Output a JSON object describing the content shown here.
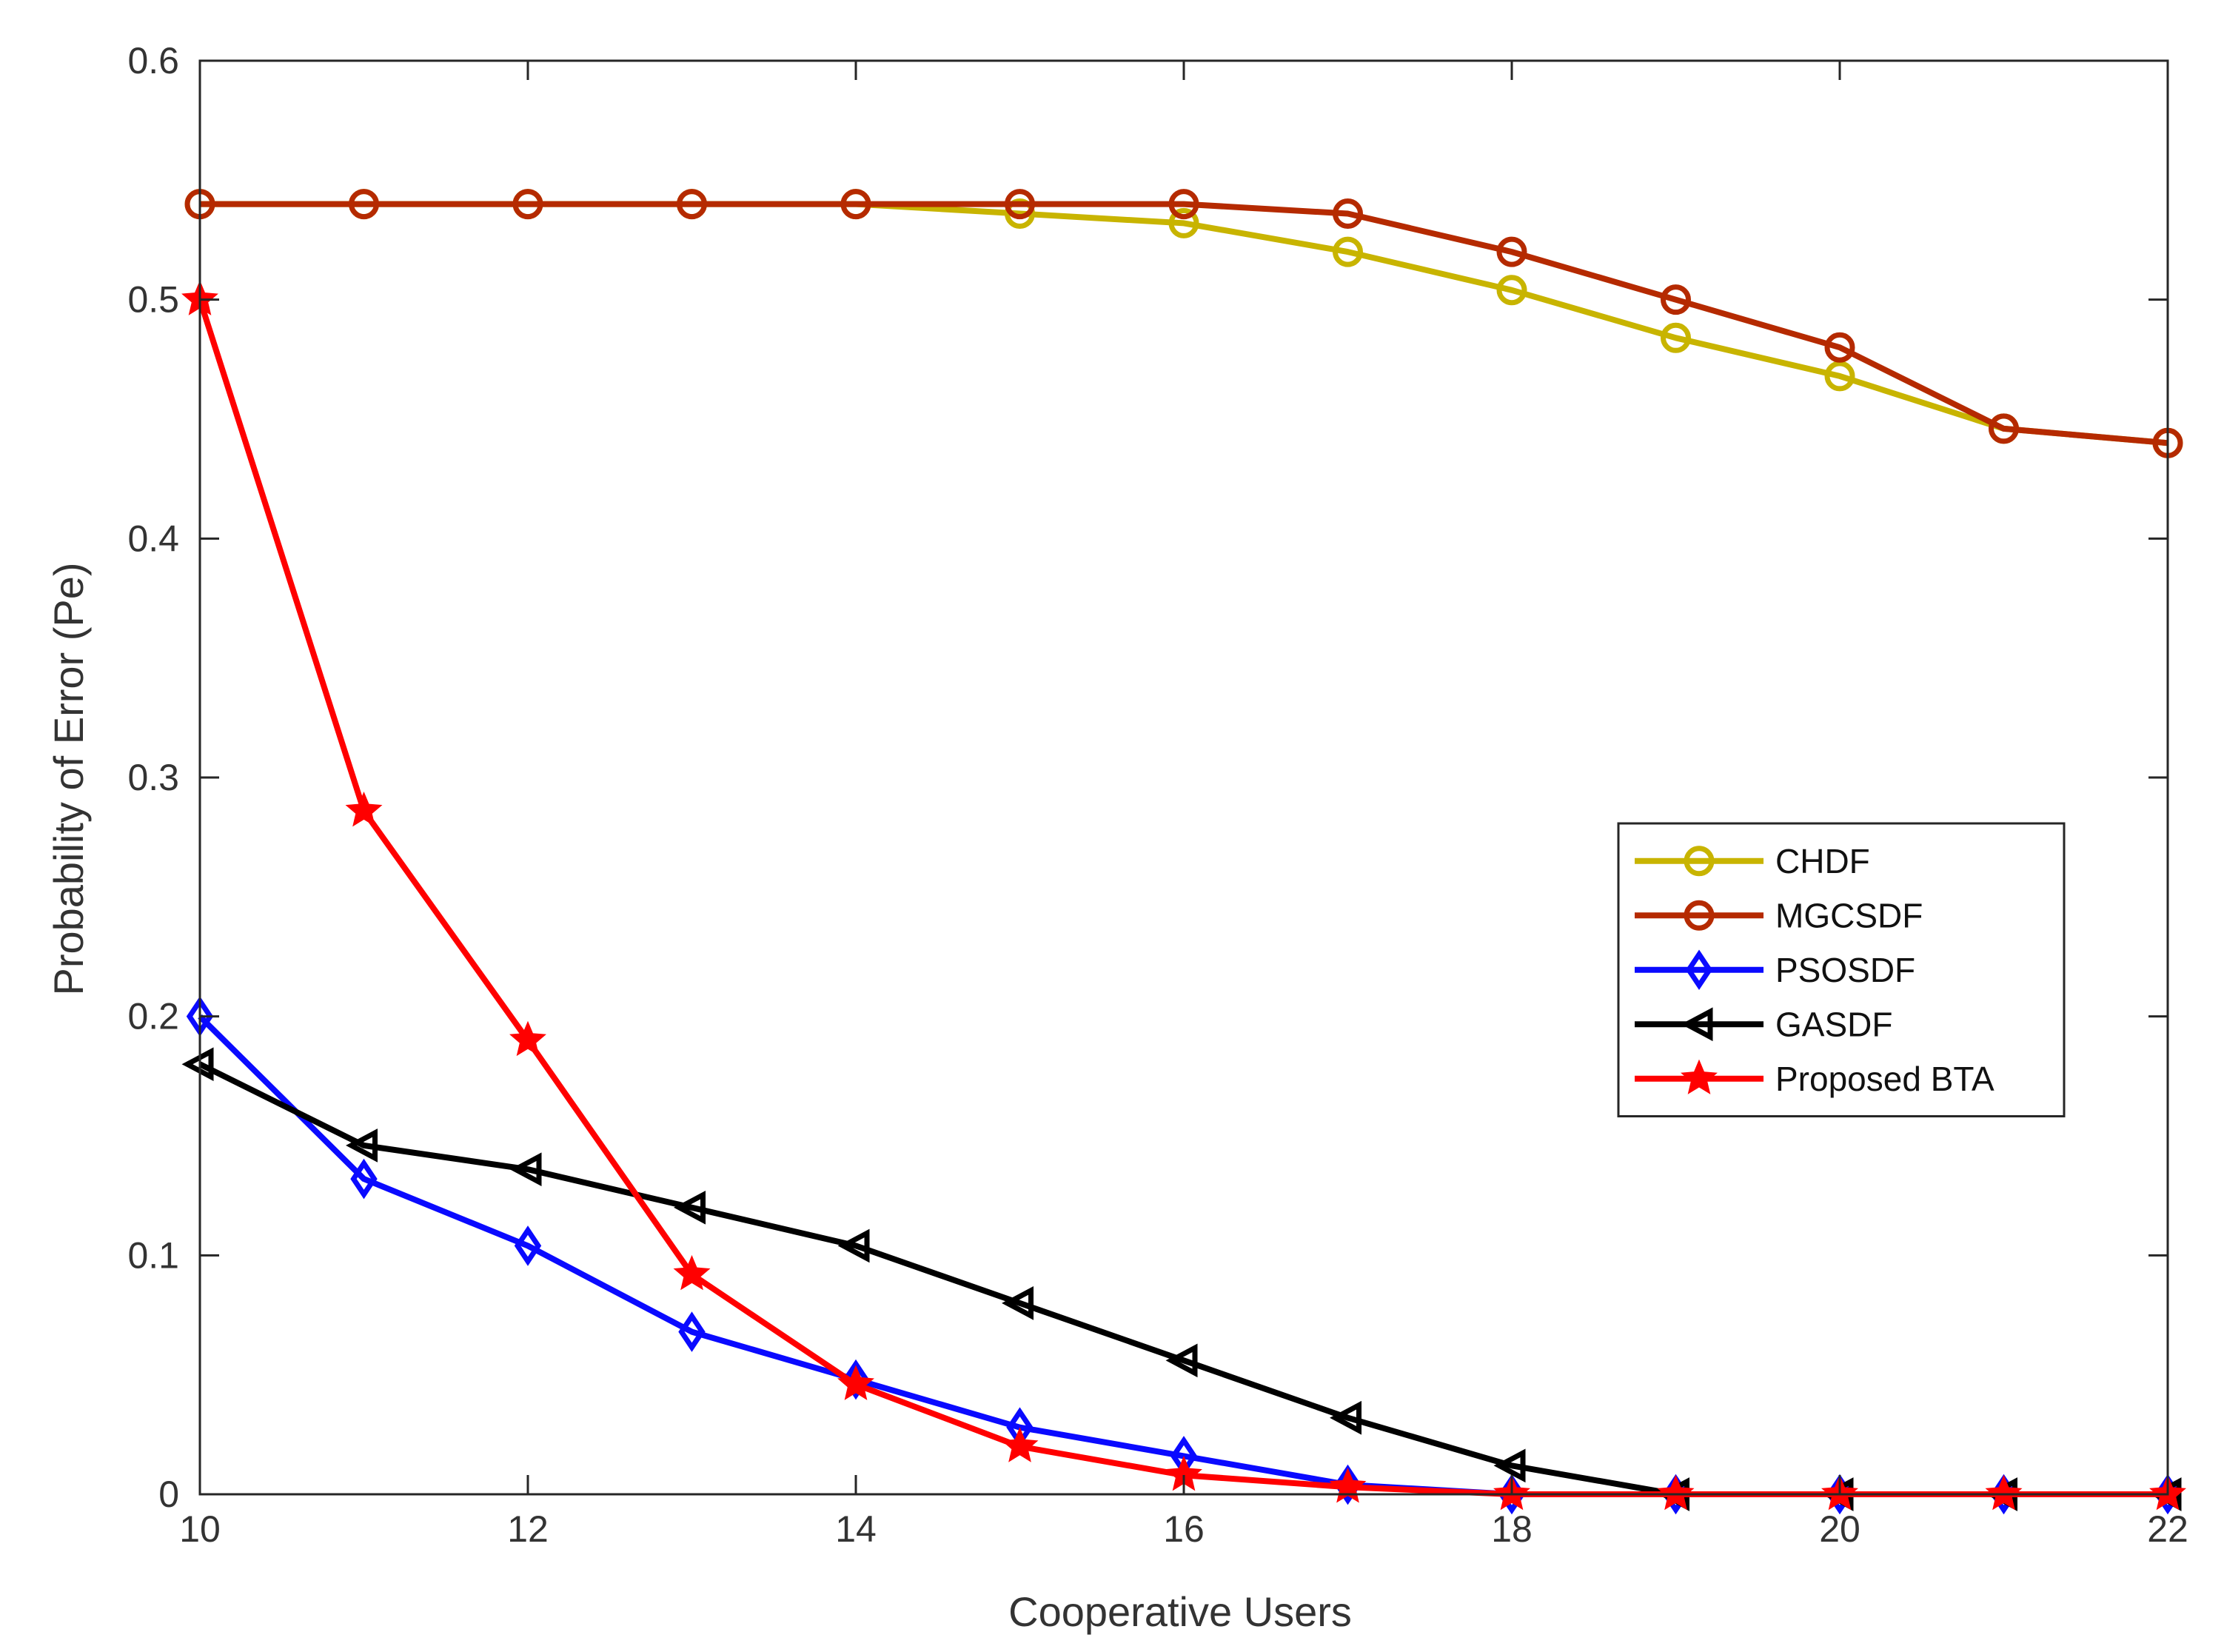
{
  "chart_data": {
    "type": "line",
    "title": "",
    "xlabel": "Cooperative Users",
    "ylabel": "Probability of Error (Pe)",
    "xlim": [
      10,
      22
    ],
    "ylim": [
      0,
      0.6
    ],
    "xticks": [
      10,
      12,
      14,
      16,
      18,
      20,
      22
    ],
    "yticks": [
      0,
      0.1,
      0.2,
      0.3,
      0.4,
      0.5,
      0.6
    ],
    "xtick_labels": [
      "10",
      "12",
      "14",
      "16",
      "18",
      "20",
      "22"
    ],
    "ytick_labels": [
      "0",
      "0.1",
      "0.2",
      "0.3",
      "0.4",
      "0.5",
      "0.6"
    ],
    "grid": false,
    "legend_position": "center-right",
    "x": [
      10,
      11,
      12,
      13,
      14,
      15,
      16,
      17,
      18,
      19,
      20,
      21,
      22
    ],
    "series": [
      {
        "name": "CHDF",
        "color": "#c8b400",
        "marker": "circle",
        "values": [
          0.54,
          0.54,
          0.54,
          0.54,
          0.54,
          0.536,
          0.532,
          0.52,
          0.504,
          0.484,
          0.468,
          0.446,
          0.44
        ]
      },
      {
        "name": "MGCSDF",
        "color": "#b52a00",
        "marker": "circle",
        "values": [
          0.54,
          0.54,
          0.54,
          0.54,
          0.54,
          0.54,
          0.54,
          0.536,
          0.52,
          0.5,
          0.48,
          0.446,
          0.44
        ]
      },
      {
        "name": "PSOSDF",
        "color": "#0a0aff",
        "marker": "diamond",
        "values": [
          0.2,
          0.132,
          0.104,
          0.068,
          0.048,
          0.028,
          0.016,
          0.004,
          0,
          0,
          0,
          0,
          0
        ]
      },
      {
        "name": "GASDF",
        "color": "#000000",
        "marker": "triangle-left",
        "values": [
          0.18,
          0.146,
          0.136,
          0.12,
          0.104,
          0.08,
          0.056,
          0.032,
          0.012,
          0,
          0,
          0,
          0
        ]
      },
      {
        "name": "Proposed BTA",
        "color": "#ff0000",
        "marker": "star",
        "values": [
          0.5,
          0.286,
          0.19,
          0.092,
          0.046,
          0.02,
          0.008,
          0.003,
          0,
          0,
          0,
          0,
          0
        ]
      }
    ]
  }
}
